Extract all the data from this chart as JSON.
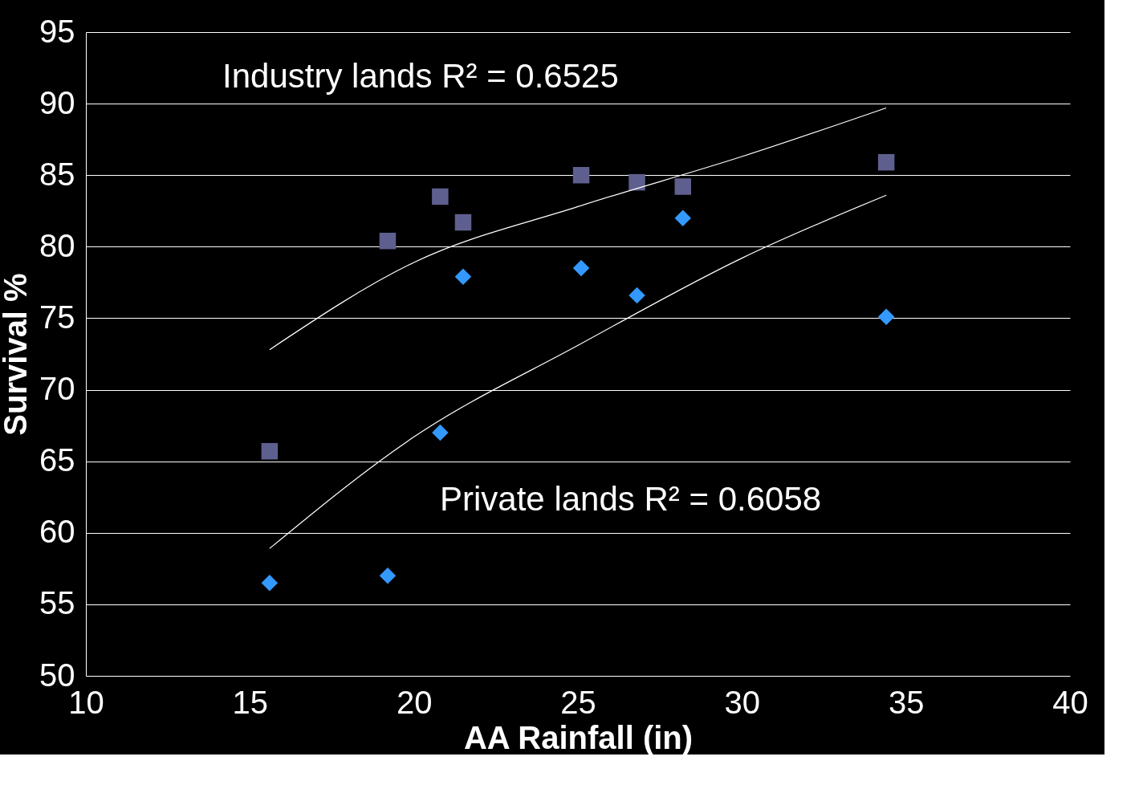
{
  "chart_data": {
    "type": "scatter",
    "xlabel": "AA Rainfall (in)",
    "ylabel": "Survival %",
    "xlim": [
      10,
      40
    ],
    "xticks": [
      10,
      15,
      20,
      25,
      30,
      35,
      40
    ],
    "ylim": [
      50,
      95
    ],
    "yticks": [
      50,
      55,
      60,
      65,
      70,
      75,
      80,
      85,
      90,
      95
    ],
    "grid": "y",
    "series": [
      {
        "type": "scatter",
        "marker": "square",
        "color": "#5f5f8f",
        "x": [
          15.6,
          19.2,
          20.8,
          21.5,
          25.1,
          26.8,
          28.2,
          34.4
        ],
        "values": [
          65.7,
          80.4,
          83.5,
          81.7,
          85.0,
          84.5,
          84.2,
          85.9
        ]
      },
      {
        "type": "scatter",
        "marker": "diamond",
        "color": "#3399ff",
        "x": [
          15.6,
          19.2,
          20.8,
          21.5,
          25.1,
          26.8,
          28.2,
          34.4
        ],
        "values": [
          56.5,
          57.0,
          67.0,
          77.9,
          78.5,
          76.6,
          82.0,
          75.1
        ]
      },
      {
        "type": "line",
        "line_style": "solid",
        "color": "#ffffff",
        "x": [
          15.6,
          20,
          25,
          30,
          34.4
        ],
        "values": [
          72.8,
          78.9,
          82.8,
          86.3,
          89.7
        ]
      },
      {
        "type": "line",
        "line_style": "solid",
        "color": "#ffffff",
        "x": [
          15.6,
          20,
          25,
          30,
          34.4
        ],
        "values": [
          58.9,
          66.7,
          73.1,
          79.2,
          83.6
        ]
      }
    ],
    "annotations": [
      "Industry lands R² = 0.6525",
      "Private lands  R² = 0.6058"
    ]
  }
}
